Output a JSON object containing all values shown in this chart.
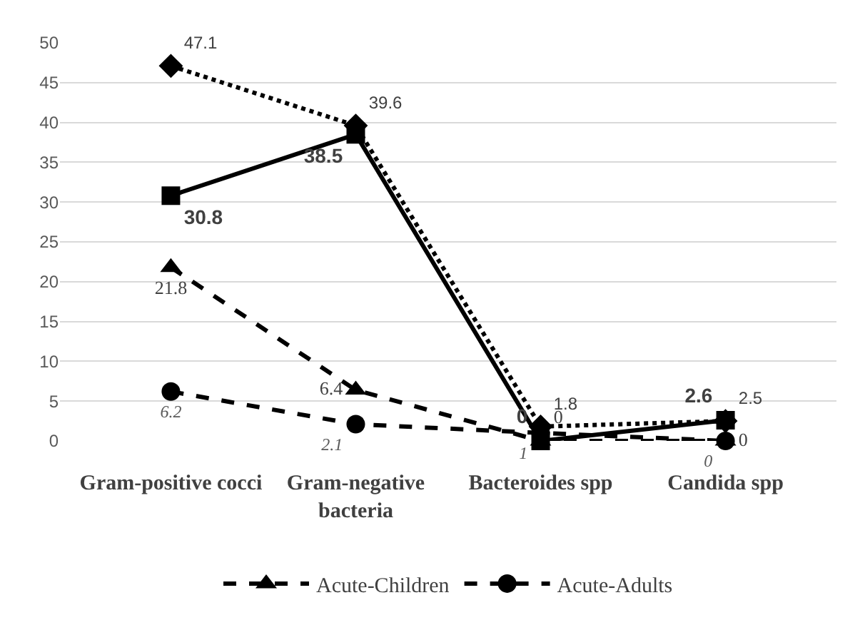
{
  "chart_data": {
    "type": "line",
    "categories": [
      "Gram-positive cocci",
      "Gram-negative bacteria",
      "Bacteroides spp",
      "Candida spp"
    ],
    "series": [
      {
        "color": "#000000",
        "marker": "diamond",
        "line_style": "dotted",
        "values": [
          47.1,
          39.6,
          1.8,
          2.5
        ]
      },
      {
        "color": "#000000",
        "marker": "square",
        "line_style": "solid",
        "values": [
          30.8,
          38.5,
          0,
          2.6
        ]
      },
      {
        "name": "Acute-Children",
        "color": "#000000",
        "marker": "triangle",
        "line_style": "dashed",
        "values": [
          21.8,
          6.4,
          0,
          0
        ]
      },
      {
        "name": "Acute-Adults",
        "color": "#000000",
        "marker": "circle",
        "line_style": "dashed",
        "values": [
          6.2,
          2.1,
          1,
          0
        ]
      }
    ],
    "ylim": [
      0,
      50
    ],
    "yticks": [
      0,
      5,
      10,
      15,
      20,
      25,
      30,
      35,
      40,
      45,
      50
    ],
    "grid": "y",
    "legend": "bottom",
    "data_labels": true
  }
}
